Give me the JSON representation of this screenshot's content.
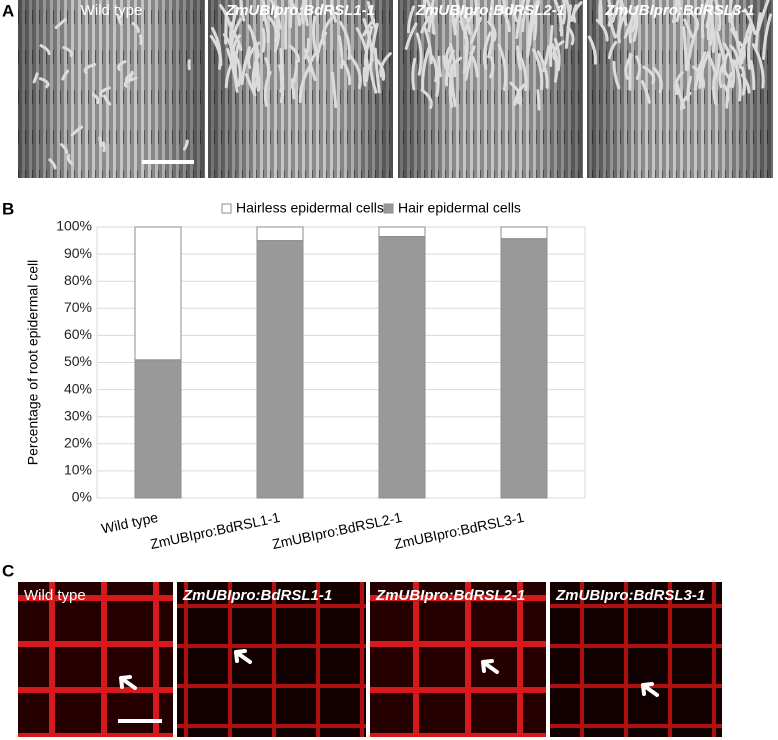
{
  "panel_labels": [
    "A",
    "B",
    "C"
  ],
  "panel_a": {
    "labels": [
      "Wild type",
      "ZmUBIpro:BdRSL1-1",
      "ZmUBIpro:BdRSL2-1",
      "ZmUBIpro:BdRSL3-1"
    ]
  },
  "chart_data": {
    "type": "stacked_bar",
    "y_label": "Percentage of root epidermal cell",
    "categories": [
      "Wild type",
      "ZmUBIpro:BdRSL1-1",
      "ZmUBIpro:BdRSL2-1",
      "ZmUBIpro:BdRSL3-1"
    ],
    "series": [
      {
        "name": "Hair epidermal cells",
        "color": "#999999",
        "values": [
          51,
          95,
          96.5,
          95.7
        ]
      },
      {
        "name": "Hairless epidermal cells",
        "color": "#ffffff",
        "values": [
          49,
          5,
          3.5,
          4.3
        ]
      }
    ],
    "ylim": [
      0,
      100
    ],
    "yticks": [
      {
        "value": 0,
        "label": "0%"
      },
      {
        "value": 10,
        "label": "10%"
      },
      {
        "value": 20,
        "label": "20%"
      },
      {
        "value": 30,
        "label": "30%"
      },
      {
        "value": 40,
        "label": "40%"
      },
      {
        "value": 50,
        "label": "50%"
      },
      {
        "value": 60,
        "label": "60%"
      },
      {
        "value": 70,
        "label": "70%"
      },
      {
        "value": 80,
        "label": "80%"
      },
      {
        "value": 90,
        "label": "90%"
      },
      {
        "value": 100,
        "label": "100%"
      }
    ],
    "grid": true,
    "legend": "top"
  },
  "panel_c": {
    "labels": [
      "Wild type",
      "ZmUBIpro:BdRSL1-1",
      "ZmUBIpro:BdRSL2-1",
      "ZmUBIpro:BdRSL3-1"
    ]
  }
}
